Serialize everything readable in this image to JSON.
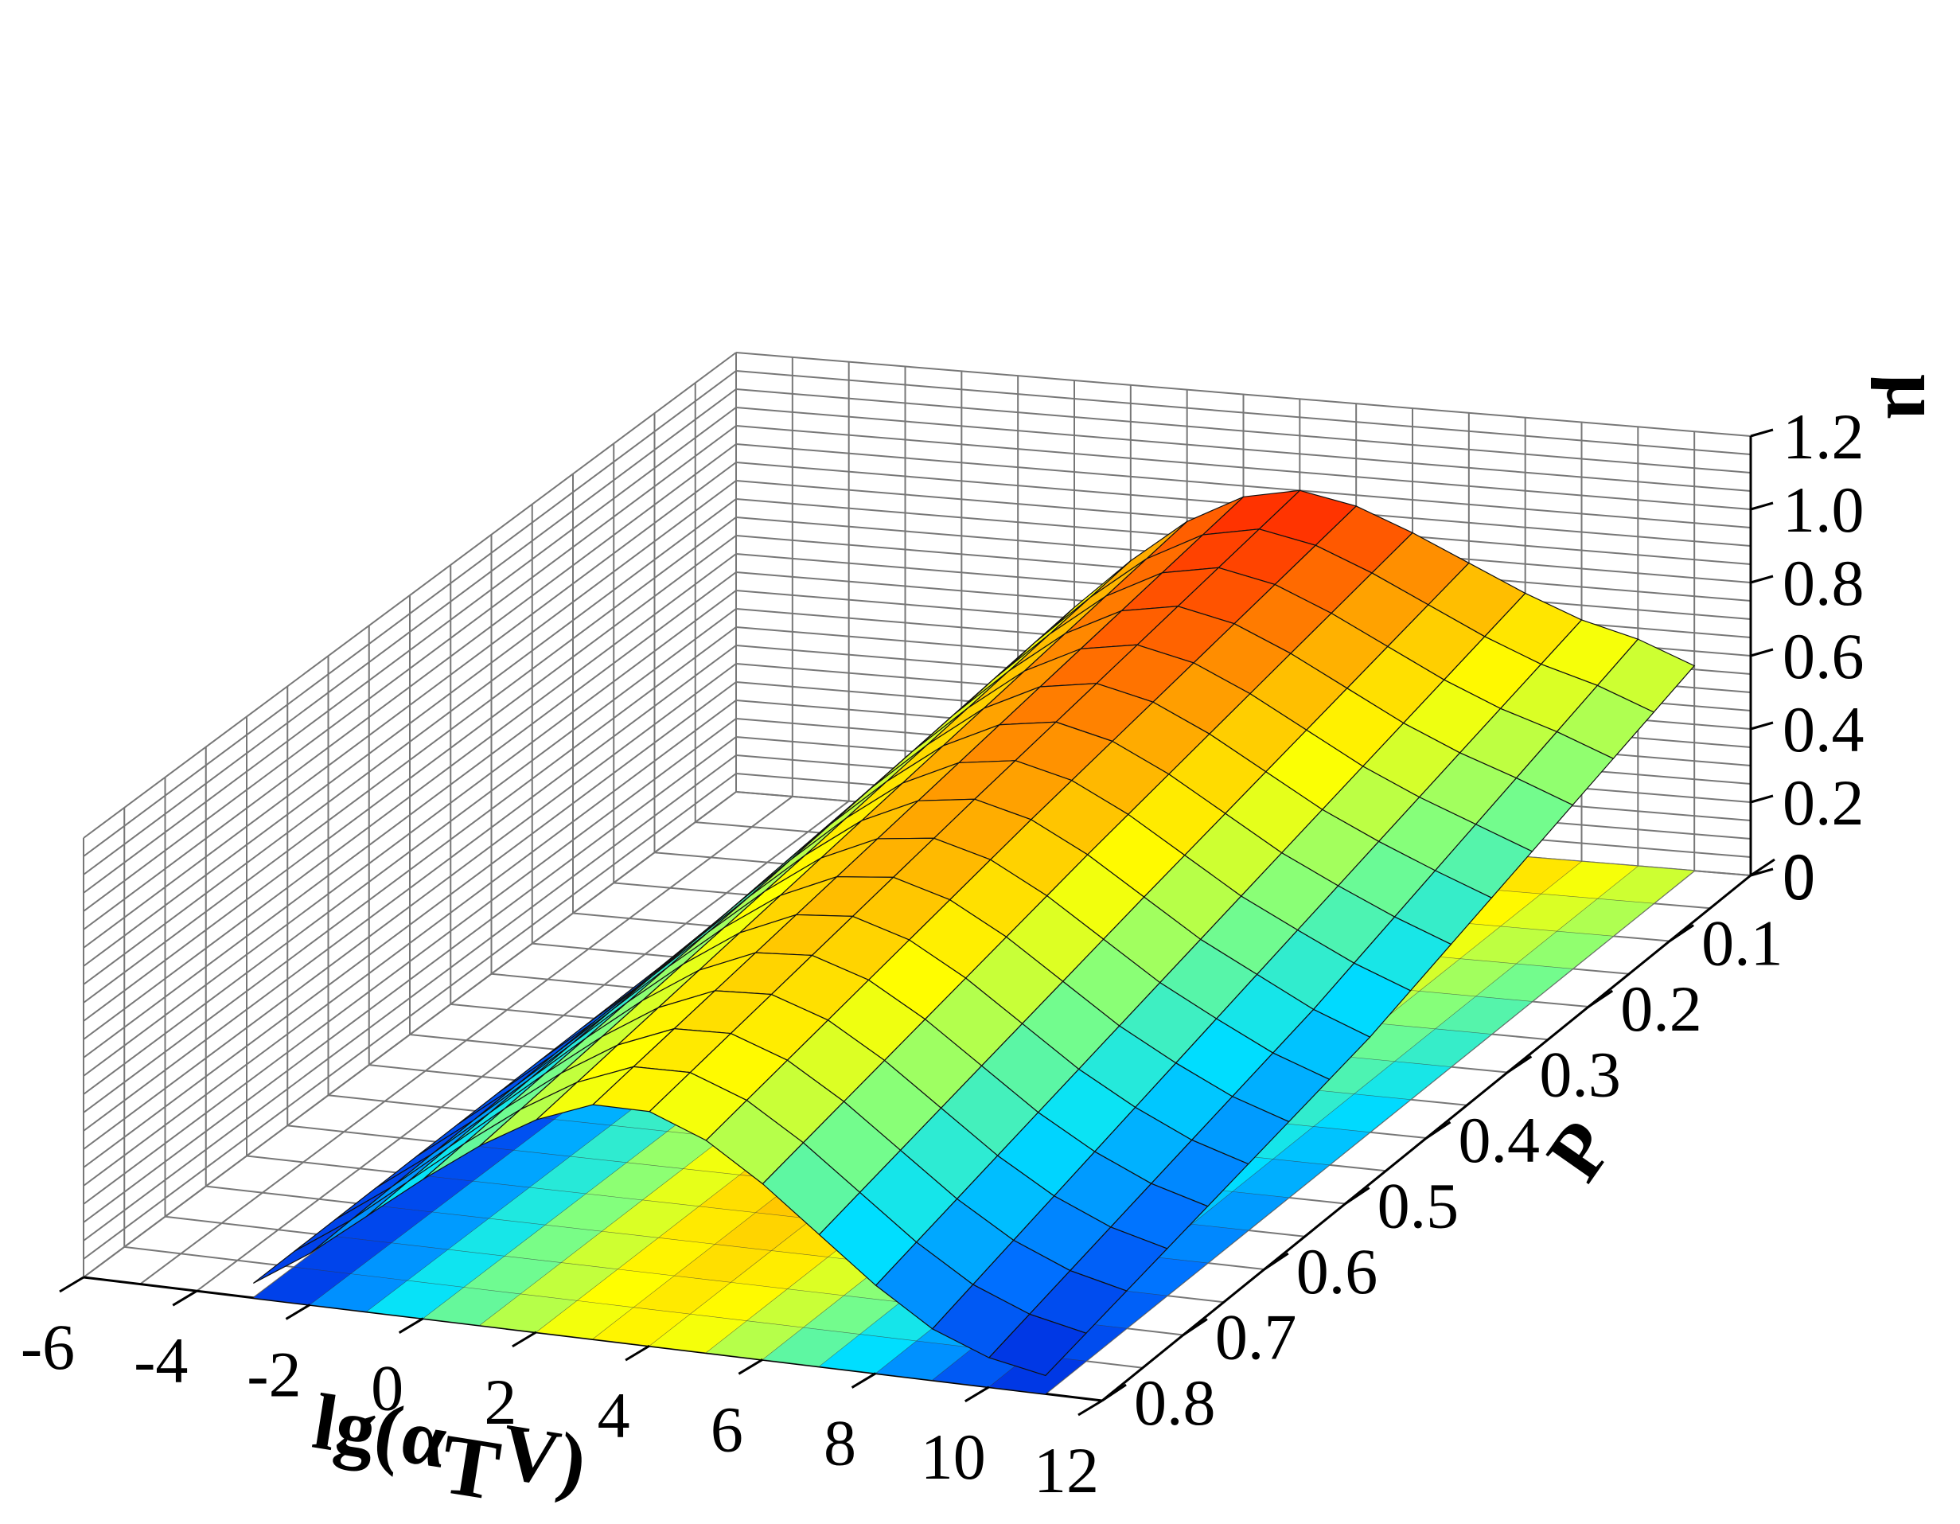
{
  "chart_data": {
    "type": "surface",
    "title": "",
    "xlabel": {
      "main": "lg(α",
      "sub": "T",
      "tail": "V)"
    },
    "ylabel": "P",
    "zlabel": "μ",
    "xlim": [
      -6,
      12
    ],
    "ylim": [
      0,
      0.8
    ],
    "zlim": [
      0,
      1.2
    ],
    "x_ticks": [
      "-6",
      "-4",
      "-2",
      "0",
      "2",
      "4",
      "6",
      "8",
      "10",
      "12"
    ],
    "y_ticks": [
      "0",
      "0.1",
      "0.2",
      "0.3",
      "0.4",
      "0.5",
      "0.6",
      "0.7",
      "0.8"
    ],
    "z_ticks": [
      "0",
      "0.2",
      "0.4",
      "0.6",
      "0.8",
      "1.0",
      "1.2"
    ],
    "x_range": [
      -3,
      11
    ],
    "y_range": [
      0,
      0.8
    ],
    "grid": true,
    "colormap": [
      "#0000cc",
      "#0070ff",
      "#00e0ff",
      "#80ff80",
      "#ffff00",
      "#ffa000",
      "#ff2000"
    ],
    "color_min": 0,
    "color_max": 0.95,
    "projected_contour_on_floor": true,
    "surface": {
      "x": [
        -3,
        -2,
        -1,
        0,
        1,
        2,
        3,
        4,
        5,
        6,
        7,
        8,
        9,
        10,
        11
      ],
      "rows": [
        {
          "P": 0.0,
          "mu": [
            0.08,
            0.25,
            0.42,
            0.58,
            0.72,
            0.84,
            0.92,
            0.95,
            0.92,
            0.86,
            0.79,
            0.72,
            0.66,
            0.62,
            0.56
          ]
        },
        {
          "P": 0.4,
          "mu": [
            0.06,
            0.19,
            0.33,
            0.47,
            0.6,
            0.71,
            0.78,
            0.8,
            0.76,
            0.68,
            0.58,
            0.48,
            0.4,
            0.32,
            0.26
          ]
        },
        {
          "P": 0.8,
          "mu": [
            0.04,
            0.14,
            0.26,
            0.38,
            0.49,
            0.58,
            0.64,
            0.64,
            0.58,
            0.48,
            0.36,
            0.24,
            0.14,
            0.08,
            0.05
          ]
        }
      ]
    }
  }
}
